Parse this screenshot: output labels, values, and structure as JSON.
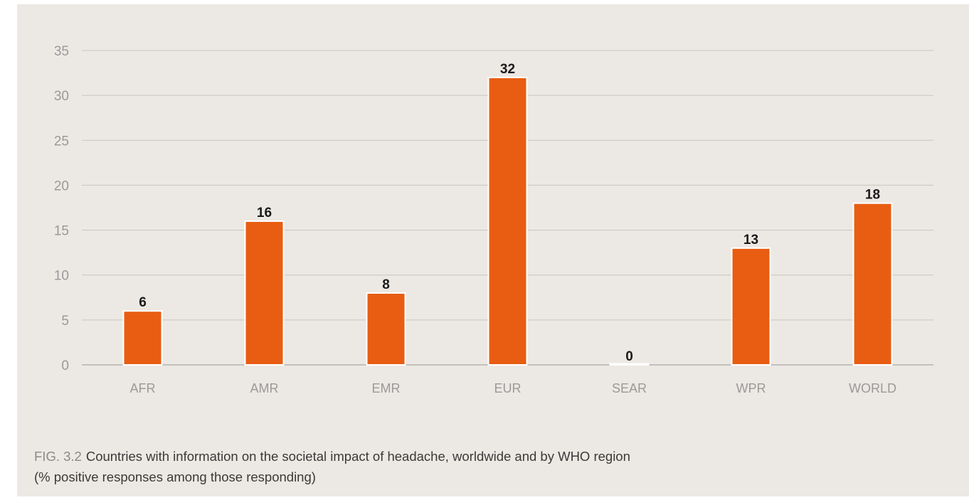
{
  "chart_data": {
    "type": "bar",
    "categories": [
      "AFR",
      "AMR",
      "EMR",
      "EUR",
      "SEAR",
      "WPR",
      "WORLD"
    ],
    "values": [
      6,
      16,
      8,
      32,
      0,
      13,
      18
    ],
    "ylim": [
      0,
      35
    ],
    "yticks": [
      0,
      5,
      10,
      15,
      20,
      25,
      30,
      35
    ],
    "grid": true,
    "data_labels": true,
    "colors": {
      "bar": "#e85d12",
      "bar_outline": "#ffffff",
      "grid": "#c8c4bf",
      "axis_text": "#9a9a9a",
      "value_text": "#1a1a1a",
      "background": "#ece8e3"
    }
  },
  "caption": {
    "label": "FIG. 3.2",
    "text": "Countries with information on the societal impact of headache, worldwide and by WHO region",
    "subtext": "(% positive responses among those responding)"
  }
}
